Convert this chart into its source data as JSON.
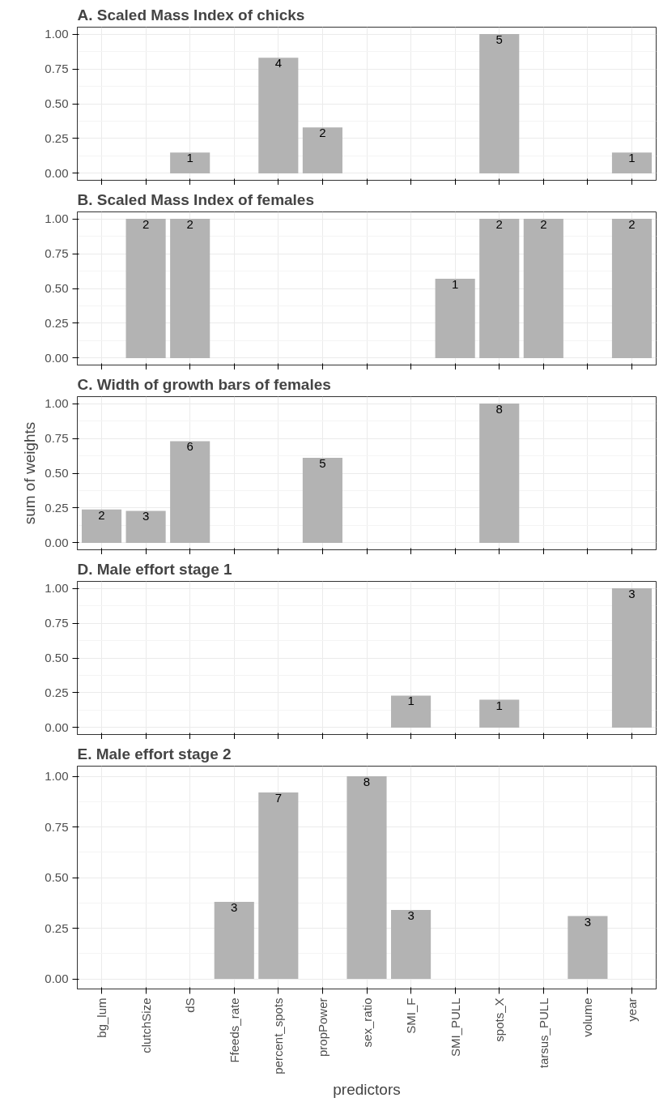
{
  "chart_data": [
    {
      "type": "bar",
      "title": "A. Scaled Mass Index of chicks",
      "categories": [
        "bg_lum",
        "clutchSize",
        "dS",
        "Ffeeds_rate",
        "percent_spots",
        "propPower",
        "sex_ratio",
        "SMI_F",
        "SMI_PULL",
        "spots_X",
        "tarsus_PULL",
        "volume",
        "year"
      ],
      "values": [
        null,
        null,
        0.15,
        null,
        0.83,
        0.33,
        null,
        null,
        null,
        1.0,
        null,
        null,
        0.15
      ],
      "annotations": [
        {
          "text": "1",
          "x": "dS",
          "y": 0.15
        },
        {
          "text": "4",
          "x": "percent_spots",
          "y": 0.83
        },
        {
          "text": "2",
          "x": "propPower",
          "y": 0.33
        },
        {
          "text": "5",
          "x": "spots_X",
          "y": 1.0
        },
        {
          "text": "1",
          "x": "year",
          "y": 0.15
        }
      ],
      "color": "#b3b3b3",
      "ylim": [
        -0.05,
        1.05
      ],
      "yticks": [
        {
          "value": 0,
          "label": "0.00"
        },
        {
          "value": 0.25,
          "label": "0.25"
        },
        {
          "value": 0.5,
          "label": "0.50"
        },
        {
          "value": 0.75,
          "label": "0.75"
        },
        {
          "value": 1,
          "label": "1.00"
        }
      ],
      "grid": true,
      "tick_labels": "y"
    },
    {
      "type": "bar",
      "title": "B. Scaled Mass Index of females",
      "categories": [
        "bg_lum",
        "clutchSize",
        "dS",
        "Ffeeds_rate",
        "percent_spots",
        "propPower",
        "sex_ratio",
        "SMI_F",
        "SMI_PULL",
        "spots_X",
        "tarsus_PULL",
        "volume",
        "year"
      ],
      "values": [
        null,
        1.0,
        1.0,
        null,
        null,
        null,
        null,
        null,
        0.57,
        1.0,
        1.0,
        null,
        1.0
      ],
      "annotations": [
        {
          "text": "2",
          "x": "clutchSize",
          "y": 1.0
        },
        {
          "text": "2",
          "x": "dS",
          "y": 1.0
        },
        {
          "text": "1",
          "x": "SMI_PULL",
          "y": 0.57
        },
        {
          "text": "2",
          "x": "spots_X",
          "y": 1.0
        },
        {
          "text": "2",
          "x": "tarsus_PULL",
          "y": 1.0
        },
        {
          "text": "2",
          "x": "year",
          "y": 1.0
        }
      ],
      "color": "#b3b3b3",
      "ylim": [
        -0.05,
        1.05
      ],
      "yticks": [
        {
          "value": 0,
          "label": "0.00"
        },
        {
          "value": 0.25,
          "label": "0.25"
        },
        {
          "value": 0.5,
          "label": "0.50"
        },
        {
          "value": 0.75,
          "label": "0.75"
        },
        {
          "value": 1,
          "label": "1.00"
        }
      ],
      "grid": true,
      "tick_labels": "y"
    },
    {
      "type": "bar",
      "title": "C. Width of growth bars of females",
      "ylabel": "sum of weights",
      "categories": [
        "bg_lum",
        "clutchSize",
        "dS",
        "Ffeeds_rate",
        "percent_spots",
        "propPower",
        "sex_ratio",
        "SMI_F",
        "SMI_PULL",
        "spots_X",
        "tarsus_PULL",
        "volume",
        "year"
      ],
      "values": [
        0.24,
        0.23,
        0.73,
        null,
        null,
        0.61,
        null,
        null,
        null,
        1.0,
        null,
        null,
        null
      ],
      "annotations": [
        {
          "text": "2",
          "x": "bg_lum",
          "y": 0.24
        },
        {
          "text": "3",
          "x": "clutchSize",
          "y": 0.23
        },
        {
          "text": "6",
          "x": "dS",
          "y": 0.73
        },
        {
          "text": "5",
          "x": "propPower",
          "y": 0.61
        },
        {
          "text": "8",
          "x": "spots_X",
          "y": 1.0
        }
      ],
      "color": "#b3b3b3",
      "ylim": [
        -0.05,
        1.05
      ],
      "yticks": [
        {
          "value": 0,
          "label": "0.00"
        },
        {
          "value": 0.25,
          "label": "0.25"
        },
        {
          "value": 0.5,
          "label": "0.50"
        },
        {
          "value": 0.75,
          "label": "0.75"
        },
        {
          "value": 1,
          "label": "1.00"
        }
      ],
      "grid": true,
      "tick_labels": "y"
    },
    {
      "type": "bar",
      "title": "D. Male effort stage 1",
      "categories": [
        "bg_lum",
        "clutchSize",
        "dS",
        "Ffeeds_rate",
        "percent_spots",
        "propPower",
        "sex_ratio",
        "SMI_F",
        "SMI_PULL",
        "spots_X",
        "tarsus_PULL",
        "volume",
        "year"
      ],
      "values": [
        null,
        null,
        null,
        null,
        null,
        null,
        null,
        0.23,
        null,
        0.2,
        null,
        null,
        1.0
      ],
      "annotations": [
        {
          "text": "1",
          "x": "SMI_F",
          "y": 0.23
        },
        {
          "text": "1",
          "x": "spots_X",
          "y": 0.2
        },
        {
          "text": "3",
          "x": "year",
          "y": 1.0
        }
      ],
      "color": "#b3b3b3",
      "ylim": [
        -0.05,
        1.05
      ],
      "yticks": [
        {
          "value": 0,
          "label": "0.00"
        },
        {
          "value": 0.25,
          "label": "0.25"
        },
        {
          "value": 0.5,
          "label": "0.50"
        },
        {
          "value": 0.75,
          "label": "0.75"
        },
        {
          "value": 1,
          "label": "1.00"
        }
      ],
      "grid": true,
      "tick_labels": "y"
    },
    {
      "type": "bar",
      "title": "E. Male effort stage 2",
      "xlabel": "predictors",
      "categories": [
        "bg_lum",
        "clutchSize",
        "dS",
        "Ffeeds_rate",
        "percent_spots",
        "propPower",
        "sex_ratio",
        "SMI_F",
        "SMI_PULL",
        "spots_X",
        "tarsus_PULL",
        "volume",
        "year"
      ],
      "values": [
        null,
        null,
        null,
        0.38,
        0.92,
        null,
        1.0,
        0.34,
        null,
        null,
        null,
        0.31,
        null
      ],
      "annotations": [
        {
          "text": "3",
          "x": "Ffeeds_rate",
          "y": 0.38
        },
        {
          "text": "7",
          "x": "percent_spots",
          "y": 0.92
        },
        {
          "text": "8",
          "x": "sex_ratio",
          "y": 1.0
        },
        {
          "text": "3",
          "x": "SMI_F",
          "y": 0.34
        },
        {
          "text": "3",
          "x": "volume",
          "y": 0.31
        }
      ],
      "color": "#b3b3b3",
      "ylim": [
        -0.05,
        1.05
      ],
      "yticks": [
        {
          "value": 0,
          "label": "0.00"
        },
        {
          "value": 0.25,
          "label": "0.25"
        },
        {
          "value": 0.5,
          "label": "0.50"
        },
        {
          "value": 0.75,
          "label": "0.75"
        },
        {
          "value": 1,
          "label": "1.00"
        }
      ],
      "grid": true
    }
  ]
}
